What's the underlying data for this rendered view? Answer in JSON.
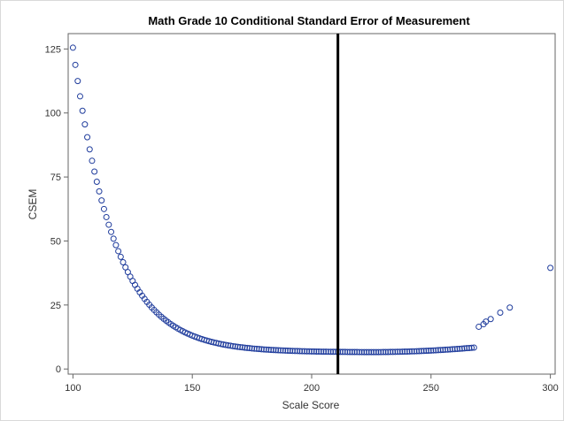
{
  "chart_data": {
    "type": "scatter",
    "title": "Math Grade 10 Conditional Standard Error of Measurement",
    "xlabel": "Scale Score",
    "ylabel": "CSEM",
    "xlim": [
      98,
      302
    ],
    "ylim": [
      -2,
      131
    ],
    "xticks": [
      100,
      150,
      200,
      250,
      300
    ],
    "yticks": [
      0,
      25,
      50,
      75,
      100,
      125
    ],
    "grid": false,
    "reference_line": {
      "orientation": "vertical",
      "x": 211,
      "color": "#000000"
    },
    "marker_color": "#1f3c9c",
    "marker": "open-circle",
    "curve_model": {
      "a": 119,
      "k": 0.058,
      "c": 6.5,
      "b": 0.000875,
      "x0": 100,
      "xmin": 222,
      "step": 1
    },
    "series": [
      {
        "x": [
          100,
          101,
          102,
          103,
          105,
          108,
          110,
          115,
          120,
          125,
          130,
          135,
          140,
          145,
          150,
          160,
          170,
          180,
          190,
          200,
          210,
          220,
          230,
          240,
          250,
          260,
          265,
          270,
          272,
          273,
          275,
          279,
          283,
          300
        ],
        "y": [
          127.5,
          119,
          112,
          106,
          95,
          81,
          72,
          56,
          44,
          35,
          28,
          23,
          19,
          16,
          14,
          10.5,
          8.5,
          7.5,
          7,
          6.5,
          6.5,
          6.5,
          6.8,
          7.5,
          9,
          12,
          14,
          16.5,
          17.5,
          18.5,
          19.5,
          22,
          24,
          39.5
        ]
      }
    ]
  }
}
